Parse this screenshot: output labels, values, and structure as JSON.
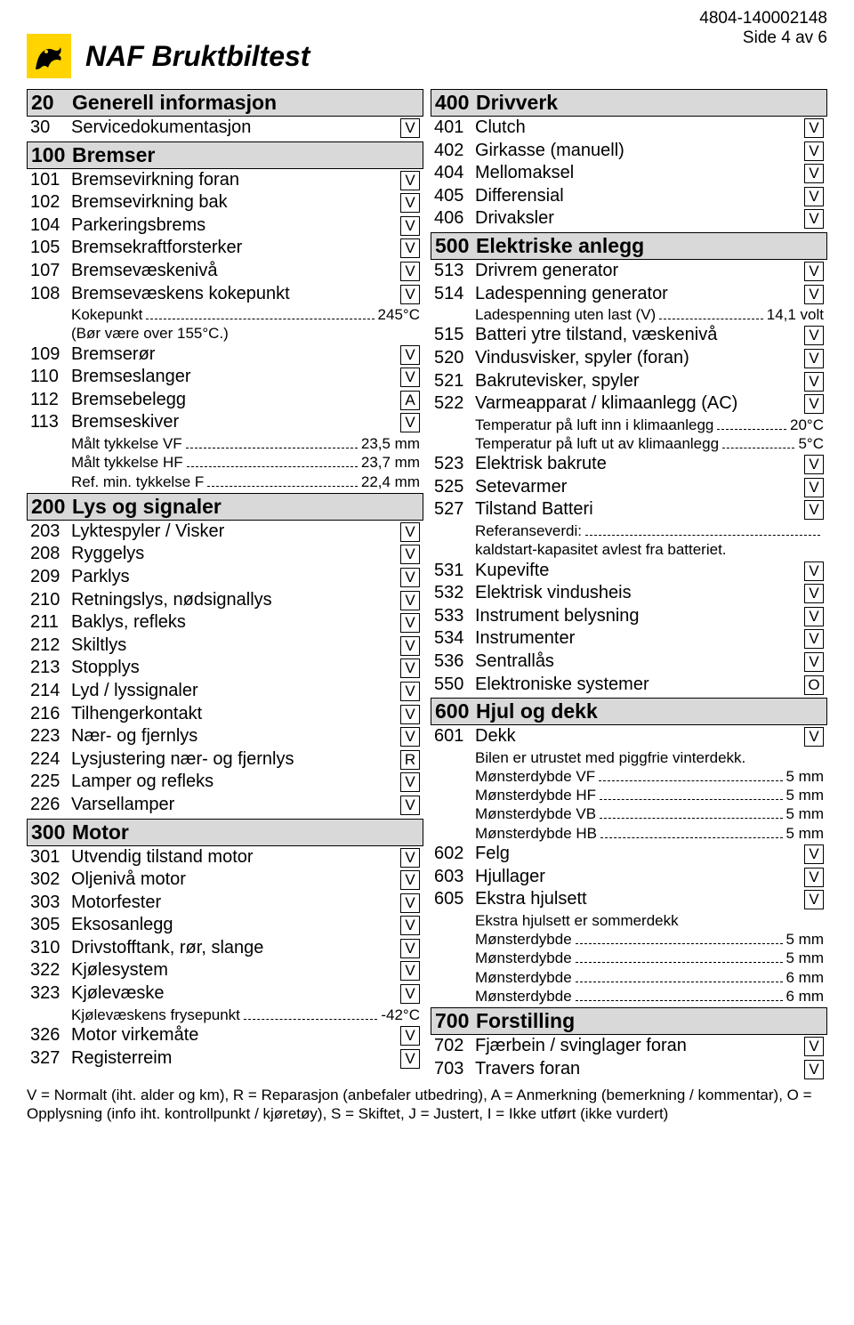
{
  "header": {
    "doc_id": "4804-140002148",
    "page_indicator": "Side 4 av 6",
    "title": "NAF Bruktbiltest"
  },
  "legend": "V = Normalt (iht. alder og km), R = Reparasjon (anbefaler utbedring), A = Anmerkning (bemerkning / kommentar), O = Opplysning (info iht. kontrollpunkt / kjøretøy), S = Skiftet, J = Justert, I = Ikke utført (ikke vurdert)",
  "colors": {
    "section_bg": "#d9d9d9",
    "logo_bg": "#ffd400",
    "text": "#000000",
    "page_bg": "#ffffff"
  },
  "left_sections": [
    {
      "num": "20",
      "title": "Generell informasjon",
      "rows": [
        {
          "num": "30",
          "label": "Servicedokumentasjon",
          "code": "V"
        }
      ]
    },
    {
      "num": "100",
      "title": "Bremser",
      "rows": [
        {
          "num": "101",
          "label": "Bremsevirkning foran",
          "code": "V"
        },
        {
          "num": "102",
          "label": "Bremsevirkning bak",
          "code": "V"
        },
        {
          "num": "104",
          "label": "Parkeringsbrems",
          "code": "V"
        },
        {
          "num": "105",
          "label": "Bremsekraftforsterker",
          "code": "V"
        },
        {
          "num": "107",
          "label": "Bremsevæskenivå",
          "code": "V"
        },
        {
          "num": "108",
          "label": "Bremsevæskens kokepunkt",
          "code": "V",
          "sub": [
            {
              "label": "Kokepunkt",
              "value": "245°C"
            },
            {
              "label": "(Bør være over 155°C.)",
              "plain": true
            }
          ]
        },
        {
          "num": "109",
          "label": "Bremserør",
          "code": "V"
        },
        {
          "num": "110",
          "label": "Bremseslanger",
          "code": "V"
        },
        {
          "num": "112",
          "label": "Bremsebelegg",
          "code": "A"
        },
        {
          "num": "113",
          "label": "Bremseskiver",
          "code": "V",
          "sub": [
            {
              "label": "Målt tykkelse VF",
              "value": "23,5 mm"
            },
            {
              "label": "Målt tykkelse HF",
              "value": "23,7 mm"
            },
            {
              "label": "Ref. min. tykkelse F",
              "value": "22,4 mm"
            }
          ]
        }
      ]
    },
    {
      "num": "200",
      "title": "Lys og signaler",
      "rows": [
        {
          "num": "203",
          "label": "Lyktespyler / Visker",
          "code": "V"
        },
        {
          "num": "208",
          "label": "Ryggelys",
          "code": "V"
        },
        {
          "num": "209",
          "label": "Parklys",
          "code": "V"
        },
        {
          "num": "210",
          "label": "Retningslys,  nødsignallys",
          "code": "V"
        },
        {
          "num": "211",
          "label": "Baklys, refleks",
          "code": "V"
        },
        {
          "num": "212",
          "label": "Skiltlys",
          "code": "V"
        },
        {
          "num": "213",
          "label": "Stopplys",
          "code": "V"
        },
        {
          "num": "214",
          "label": "Lyd / lyssignaler",
          "code": "V"
        },
        {
          "num": "216",
          "label": "Tilhengerkontakt",
          "code": "V"
        },
        {
          "num": "223",
          "label": "Nær- og fjernlys",
          "code": "V"
        },
        {
          "num": "224",
          "label": "Lysjustering nær- og fjernlys",
          "code": "R"
        },
        {
          "num": "225",
          "label": "Lamper og refleks",
          "code": "V"
        },
        {
          "num": "226",
          "label": "Varsellamper",
          "code": "V"
        }
      ]
    },
    {
      "num": "300",
      "title": "Motor",
      "rows": [
        {
          "num": "301",
          "label": "Utvendig tilstand motor",
          "code": "V"
        },
        {
          "num": "302",
          "label": "Oljenivå motor",
          "code": "V"
        },
        {
          "num": "303",
          "label": "Motorfester",
          "code": "V"
        },
        {
          "num": "305",
          "label": "Eksosanlegg",
          "code": "V"
        },
        {
          "num": "310",
          "label": "Drivstofftank, rør, slange",
          "code": "V"
        },
        {
          "num": "322",
          "label": "Kjølesystem",
          "code": "V"
        },
        {
          "num": "323",
          "label": "Kjølevæske",
          "code": "V",
          "sub": [
            {
              "label": "Kjølevæskens frysepunkt",
              "value": "-42°C"
            }
          ]
        },
        {
          "num": "326",
          "label": "Motor virkemåte",
          "code": "V"
        },
        {
          "num": "327",
          "label": "Registerreim",
          "code": "V"
        }
      ]
    }
  ],
  "right_sections": [
    {
      "num": "400",
      "title": "Drivverk",
      "rows": [
        {
          "num": "401",
          "label": "Clutch",
          "code": "V"
        },
        {
          "num": "402",
          "label": "Girkasse (manuell)",
          "code": "V"
        },
        {
          "num": "404",
          "label": "Mellomaksel",
          "code": "V"
        },
        {
          "num": "405",
          "label": "Differensial",
          "code": "V"
        },
        {
          "num": "406",
          "label": "Drivaksler",
          "code": "V"
        }
      ]
    },
    {
      "num": "500",
      "title": "Elektriske anlegg",
      "rows": [
        {
          "num": "513",
          "label": "Drivrem generator",
          "code": "V"
        },
        {
          "num": "514",
          "label": "Ladespenning generator",
          "code": "V",
          "sub": [
            {
              "label": "Ladespenning uten last (V)",
              "value": "14,1 volt"
            }
          ]
        },
        {
          "num": "515",
          "label": "Batteri ytre tilstand, væskenivå",
          "code": "V"
        },
        {
          "num": "520",
          "label": "Vindusvisker, spyler (foran)",
          "code": "V"
        },
        {
          "num": "521",
          "label": "Bakrutevisker, spyler",
          "code": "V"
        },
        {
          "num": "522",
          "label": "Varmeapparat / klimaanlegg (AC)",
          "code": "V",
          "sub": [
            {
              "label": "Temperatur på luft inn i klimaanlegg",
              "value": "20°C"
            },
            {
              "label": "Temperatur på luft ut av klimaanlegg",
              "value": "5°C"
            }
          ]
        },
        {
          "num": "523",
          "label": "Elektrisk bakrute",
          "code": "V"
        },
        {
          "num": "525",
          "label": "Setevarmer",
          "code": "V"
        },
        {
          "num": "527",
          "label": "Tilstand Batteri",
          "code": "V",
          "sub": [
            {
              "label": "Referanseverdi:",
              "value": ""
            },
            {
              "label": "kaldstart-kapasitet avlest fra batteriet.",
              "plain": true
            }
          ]
        },
        {
          "num": "531",
          "label": "Kupevifte",
          "code": "V"
        },
        {
          "num": "532",
          "label": "Elektrisk vindusheis",
          "code": "V"
        },
        {
          "num": "533",
          "label": "Instrument belysning",
          "code": "V"
        },
        {
          "num": "534",
          "label": "Instrumenter",
          "code": "V"
        },
        {
          "num": "536",
          "label": "Sentrallås",
          "code": "V"
        },
        {
          "num": "550",
          "label": "Elektroniske systemer",
          "code": "O"
        }
      ]
    },
    {
      "num": "600",
      "title": "Hjul og dekk",
      "rows": [
        {
          "num": "601",
          "label": "Dekk",
          "code": "V",
          "sub": [
            {
              "label": "Bilen er utrustet med piggfrie vinterdekk.",
              "plain": true
            },
            {
              "label": "Mønsterdybde VF",
              "value": "5 mm"
            },
            {
              "label": "Mønsterdybde HF",
              "value": "5 mm"
            },
            {
              "label": "Mønsterdybde VB",
              "value": "5 mm"
            },
            {
              "label": "Mønsterdybde HB",
              "value": "5 mm"
            }
          ]
        },
        {
          "num": "602",
          "label": "Felg",
          "code": "V"
        },
        {
          "num": "603",
          "label": "Hjullager",
          "code": "V"
        },
        {
          "num": "605",
          "label": "Ekstra hjulsett",
          "code": "V",
          "sub": [
            {
              "label": "Ekstra hjulsett er sommerdekk",
              "plain": true
            },
            {
              "label": "Mønsterdybde",
              "value": "5 mm"
            },
            {
              "label": "Mønsterdybde",
              "value": "5 mm"
            },
            {
              "label": "Mønsterdybde",
              "value": "6 mm"
            },
            {
              "label": "Mønsterdybde",
              "value": "6 mm"
            }
          ]
        }
      ]
    },
    {
      "num": "700",
      "title": "Forstilling",
      "rows": [
        {
          "num": "702",
          "label": "Fjærbein / svinglager foran",
          "code": "V"
        },
        {
          "num": "703",
          "label": "Travers foran",
          "code": "V"
        }
      ]
    }
  ]
}
